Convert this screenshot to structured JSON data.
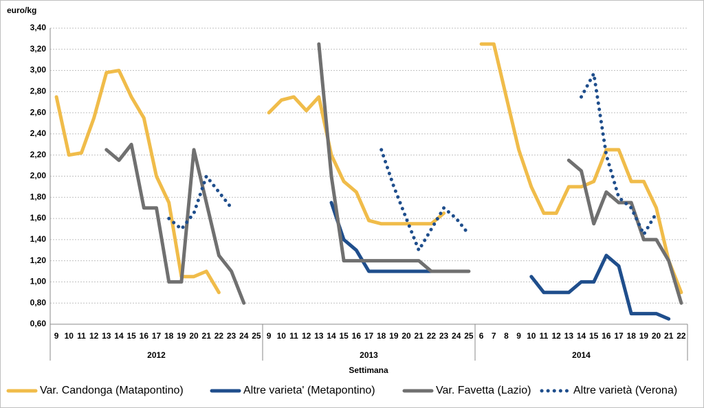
{
  "chart_data": {
    "type": "line",
    "y_label": "euro/kg",
    "x_label": "Settimana",
    "groups": [
      {
        "label": "2012",
        "categories": [
          "9",
          "10",
          "11",
          "12",
          "13",
          "14",
          "15",
          "16",
          "17",
          "18",
          "19",
          "20",
          "21",
          "22",
          "23",
          "24",
          "25"
        ]
      },
      {
        "label": "2013",
        "categories": [
          "9",
          "10",
          "11",
          "12",
          "13",
          "14",
          "15",
          "16",
          "17",
          "18",
          "19",
          "20",
          "21",
          "22",
          "23",
          "24",
          "25"
        ]
      },
      {
        "label": "2014",
        "categories": [
          "6",
          "7",
          "8",
          "9",
          "10",
          "11",
          "12",
          "13",
          "14",
          "15",
          "16",
          "17",
          "18",
          "19",
          "20",
          "21",
          "22"
        ]
      }
    ],
    "ylim": [
      0.6,
      3.4
    ],
    "yticks": [
      {
        "value": 0.6,
        "label": "0,60"
      },
      {
        "value": 0.8,
        "label": "0,80"
      },
      {
        "value": 1.0,
        "label": "1,00"
      },
      {
        "value": 1.2,
        "label": "1,20"
      },
      {
        "value": 1.4,
        "label": "1,40"
      },
      {
        "value": 1.6,
        "label": "1,60"
      },
      {
        "value": 1.8,
        "label": "1,80"
      },
      {
        "value": 2.0,
        "label": "2,00"
      },
      {
        "value": 2.2,
        "label": "2,20"
      },
      {
        "value": 2.4,
        "label": "2,40"
      },
      {
        "value": 2.6,
        "label": "2,60"
      },
      {
        "value": 2.8,
        "label": "2,80"
      },
      {
        "value": 3.0,
        "label": "3,00"
      },
      {
        "value": 3.2,
        "label": "3,20"
      },
      {
        "value": 3.4,
        "label": "3,40"
      }
    ],
    "grid": true,
    "series": [
      {
        "name": "Var. Candonga (Matapontino)",
        "color": "#f0bc4a",
        "style": "solid",
        "values": [
          2.75,
          2.2,
          2.22,
          2.55,
          2.98,
          3.0,
          2.75,
          2.55,
          2.0,
          1.75,
          1.05,
          1.05,
          1.1,
          0.9,
          null,
          null,
          null,
          2.6,
          2.72,
          2.75,
          2.62,
          2.75,
          2.2,
          1.95,
          1.85,
          1.58,
          1.55,
          1.55,
          1.55,
          1.55,
          1.55,
          1.65,
          null,
          null,
          3.25,
          3.25,
          2.75,
          2.25,
          1.9,
          1.65,
          1.65,
          1.9,
          1.9,
          1.95,
          2.25,
          2.25,
          1.95,
          1.95,
          1.7,
          1.2,
          0.9
        ]
      },
      {
        "name": "Altre varieta' (Metapontino)",
        "color": "#1f4e8c",
        "style": "solid",
        "values": [
          null,
          null,
          null,
          null,
          null,
          null,
          null,
          null,
          null,
          null,
          null,
          null,
          null,
          null,
          null,
          null,
          null,
          null,
          null,
          null,
          null,
          null,
          1.75,
          1.4,
          1.3,
          1.1,
          1.1,
          1.1,
          1.1,
          1.1,
          1.1,
          null,
          null,
          null,
          null,
          null,
          null,
          null,
          1.05,
          0.9,
          0.9,
          0.9,
          1.0,
          1.0,
          1.25,
          1.15,
          0.7,
          0.7,
          0.7,
          0.65,
          null
        ]
      },
      {
        "name": "Var. Favetta (Lazio)",
        "color": "#707070",
        "style": "solid",
        "values": [
          null,
          null,
          null,
          null,
          2.25,
          2.15,
          2.3,
          1.7,
          1.7,
          1.0,
          1.0,
          2.25,
          1.75,
          1.25,
          1.1,
          0.8,
          null,
          null,
          null,
          null,
          null,
          3.25,
          2.0,
          1.2,
          1.2,
          1.2,
          1.2,
          1.2,
          1.2,
          1.2,
          1.1,
          1.1,
          1.1,
          1.1,
          null,
          null,
          null,
          null,
          null,
          null,
          null,
          2.15,
          2.05,
          1.55,
          1.85,
          1.75,
          1.75,
          1.4,
          1.4,
          1.2,
          0.8
        ]
      },
      {
        "name": "Altre varietà (Verona)",
        "color": "#1f4e8c",
        "style": "dotted",
        "values": [
          null,
          null,
          null,
          null,
          null,
          null,
          null,
          null,
          null,
          1.6,
          1.5,
          1.65,
          2.0,
          1.85,
          1.7,
          null,
          null,
          null,
          null,
          null,
          null,
          null,
          null,
          null,
          null,
          null,
          2.25,
          1.9,
          1.6,
          1.3,
          1.5,
          1.7,
          1.6,
          1.45,
          null,
          null,
          null,
          null,
          null,
          null,
          null,
          null,
          2.75,
          2.97,
          2.2,
          1.8,
          1.7,
          1.45,
          1.65,
          null,
          null
        ]
      }
    ]
  }
}
